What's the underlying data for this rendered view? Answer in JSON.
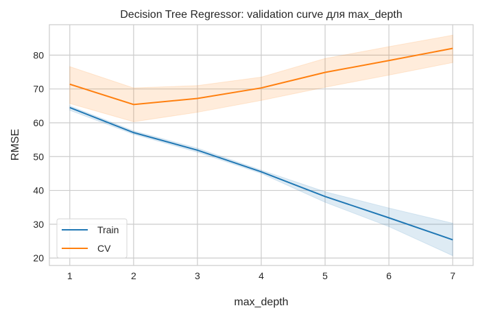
{
  "chart_data": {
    "type": "line",
    "title": "Decision Tree Regressor: validation curve для max_depth",
    "xlabel": "max_depth",
    "ylabel": "RMSE",
    "xlim": [
      0.68,
      7.32
    ],
    "ylim": [
      17.8,
      89.0
    ],
    "xticks": [
      1,
      2,
      3,
      4,
      5,
      6,
      7
    ],
    "yticks": [
      20,
      30,
      40,
      50,
      60,
      70,
      80
    ],
    "grid": true,
    "legend_placement": "lower-left",
    "x": [
      1,
      2,
      3,
      4,
      5,
      6,
      7
    ],
    "series": [
      {
        "name": "Train",
        "color": "#1f77b4",
        "values": [
          64.5,
          57.1,
          51.9,
          45.5,
          38.2,
          31.9,
          25.4
        ],
        "upper": [
          65.0,
          57.6,
          52.5,
          46.0,
          39.6,
          34.8,
          30.3
        ],
        "lower": [
          63.7,
          56.6,
          51.3,
          45.0,
          36.5,
          29.3,
          20.7
        ]
      },
      {
        "name": "CV",
        "color": "#ff7f0e",
        "values": [
          71.4,
          65.4,
          67.2,
          70.3,
          74.9,
          78.4,
          82.0
        ],
        "upper": [
          76.6,
          70.3,
          71.0,
          73.5,
          79.0,
          82.5,
          85.9
        ],
        "lower": [
          65.7,
          60.3,
          63.1,
          66.6,
          70.5,
          74.1,
          77.8
        ]
      }
    ]
  }
}
